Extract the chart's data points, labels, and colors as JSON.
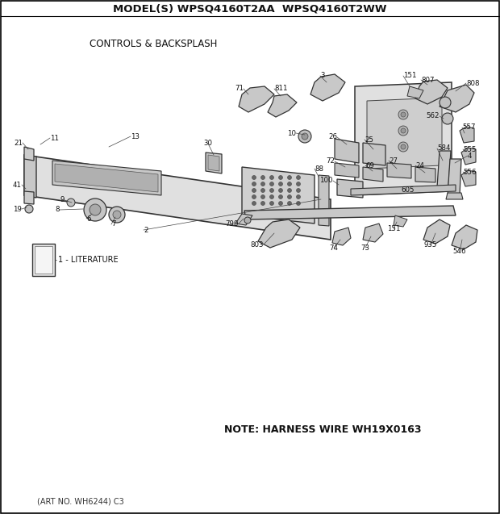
{
  "title": "MODEL(S) WPSQ4160T2AA  WPSQ4160T2WW",
  "subtitle": "CONTROLS & BACKSPLASH",
  "note": "NOTE: HARNESS WIRE WH19X0163",
  "art_no": "(ART NO. WH6244) C3",
  "bg_color": "#ffffff",
  "figsize": [
    6.2,
    6.37
  ],
  "dpi": 100
}
